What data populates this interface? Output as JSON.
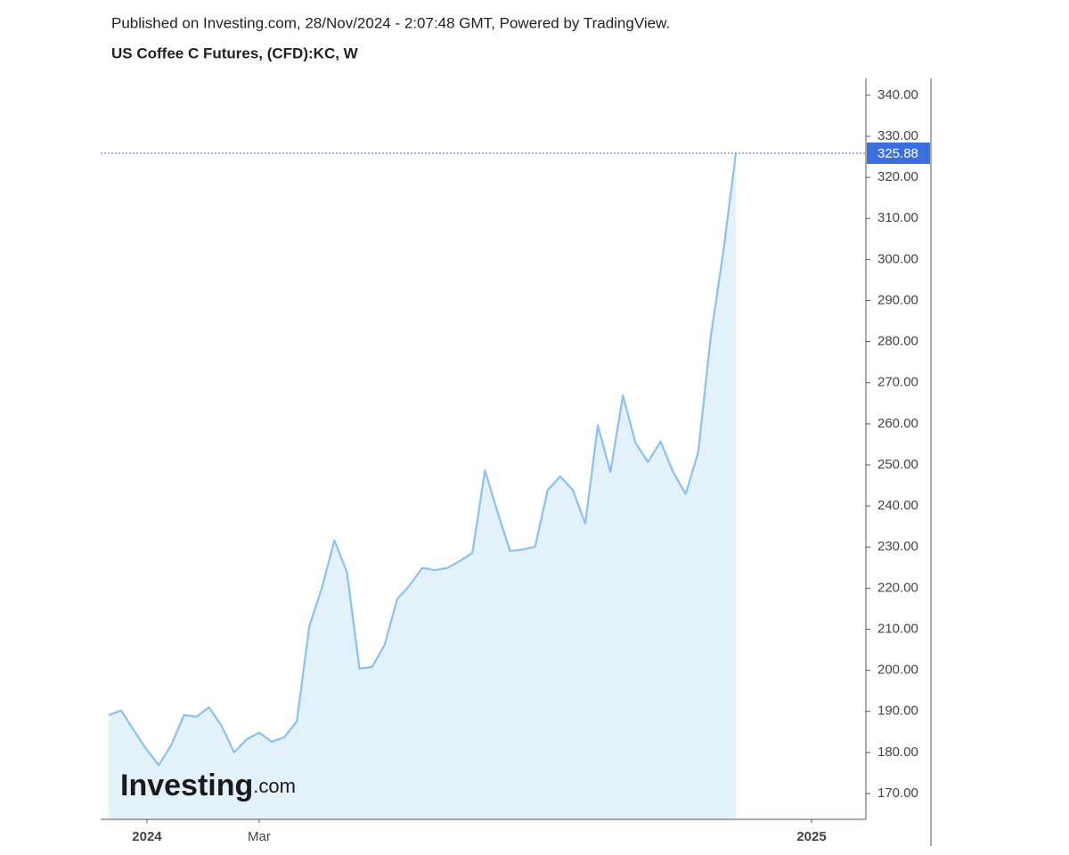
{
  "chart_data": {
    "type": "area",
    "header": "Published on Investing.com, 28/Nov/2024 - 2:07:48 GMT, Powered by TradingView.",
    "title": "US Coffee C Futures, (CFD):KC, W",
    "watermark": {
      "brand": "Investing",
      "suffix": ".com"
    },
    "x": [
      0,
      1,
      2,
      3,
      4,
      5,
      6,
      7,
      8,
      9,
      10,
      11,
      12,
      13,
      14,
      15,
      16,
      17,
      18,
      19,
      20,
      21,
      22,
      23,
      24,
      25,
      26,
      27,
      28,
      29,
      30,
      31,
      32,
      33,
      34,
      35,
      36,
      37,
      38,
      39,
      40,
      41,
      42,
      43,
      44,
      45,
      46,
      47,
      48,
      49,
      50
    ],
    "values": [
      189.1,
      190.2,
      185.4,
      180.8,
      176.9,
      181.9,
      189.1,
      188.7,
      191.0,
      186.5,
      180.0,
      183.2,
      184.8,
      182.6,
      183.7,
      187.6,
      210.8,
      220.1,
      231.6,
      223.8,
      200.4,
      200.8,
      206.2,
      217.3,
      220.7,
      224.9,
      224.4,
      224.9,
      226.6,
      228.6,
      248.7,
      238.5,
      229.0,
      229.4,
      230.1,
      243.9,
      247.2,
      243.9,
      235.7,
      259.6,
      248.3,
      266.9,
      255.4,
      250.7,
      255.7,
      248.3,
      242.9,
      253.1,
      281.2,
      301.8,
      325.88
    ],
    "value_labels": [
      null,
      null,
      null,
      null,
      null,
      null,
      null,
      null,
      null,
      null,
      null,
      null,
      null,
      null,
      null,
      null,
      null,
      null,
      null,
      null,
      null,
      null,
      null,
      null,
      null,
      null,
      null,
      null,
      null,
      null,
      null,
      null,
      null,
      null,
      null,
      null,
      null,
      null,
      null,
      null,
      null,
      null,
      null,
      null,
      null,
      null,
      null,
      null,
      null,
      null,
      "325.88"
    ],
    "color": "#8cc0ee",
    "fill_color": "#e3f1fa",
    "label_color": "#3b6fe0",
    "xlim": [
      -0.64,
      60.37
    ],
    "xticks": [
      {
        "value": 3.05,
        "label": "2024"
      },
      {
        "value": 12.0,
        "label": "Mar"
      },
      {
        "value": 56.04,
        "label": "2025"
      }
    ],
    "ylim": [
      163.7,
      344.1
    ],
    "yticks": [
      {
        "value": 170,
        "label": "170.00"
      },
      {
        "value": 180,
        "label": "180.00"
      },
      {
        "value": 190,
        "label": "190.00"
      },
      {
        "value": 200,
        "label": "200.00"
      },
      {
        "value": 210,
        "label": "210.00"
      },
      {
        "value": 220,
        "label": "220.00"
      },
      {
        "value": 230,
        "label": "230.00"
      },
      {
        "value": 240,
        "label": "240.00"
      },
      {
        "value": 250,
        "label": "250.00"
      },
      {
        "value": 260,
        "label": "260.00"
      },
      {
        "value": 270,
        "label": "270.00"
      },
      {
        "value": 280,
        "label": "280.00"
      },
      {
        "value": 290,
        "label": "290.00"
      },
      {
        "value": 300,
        "label": "300.00"
      },
      {
        "value": 310,
        "label": "310.00"
      },
      {
        "value": 320,
        "label": "320.00"
      },
      {
        "value": 330,
        "label": "330.00"
      },
      {
        "value": 340,
        "label": "340.00"
      }
    ],
    "grid": false
  }
}
